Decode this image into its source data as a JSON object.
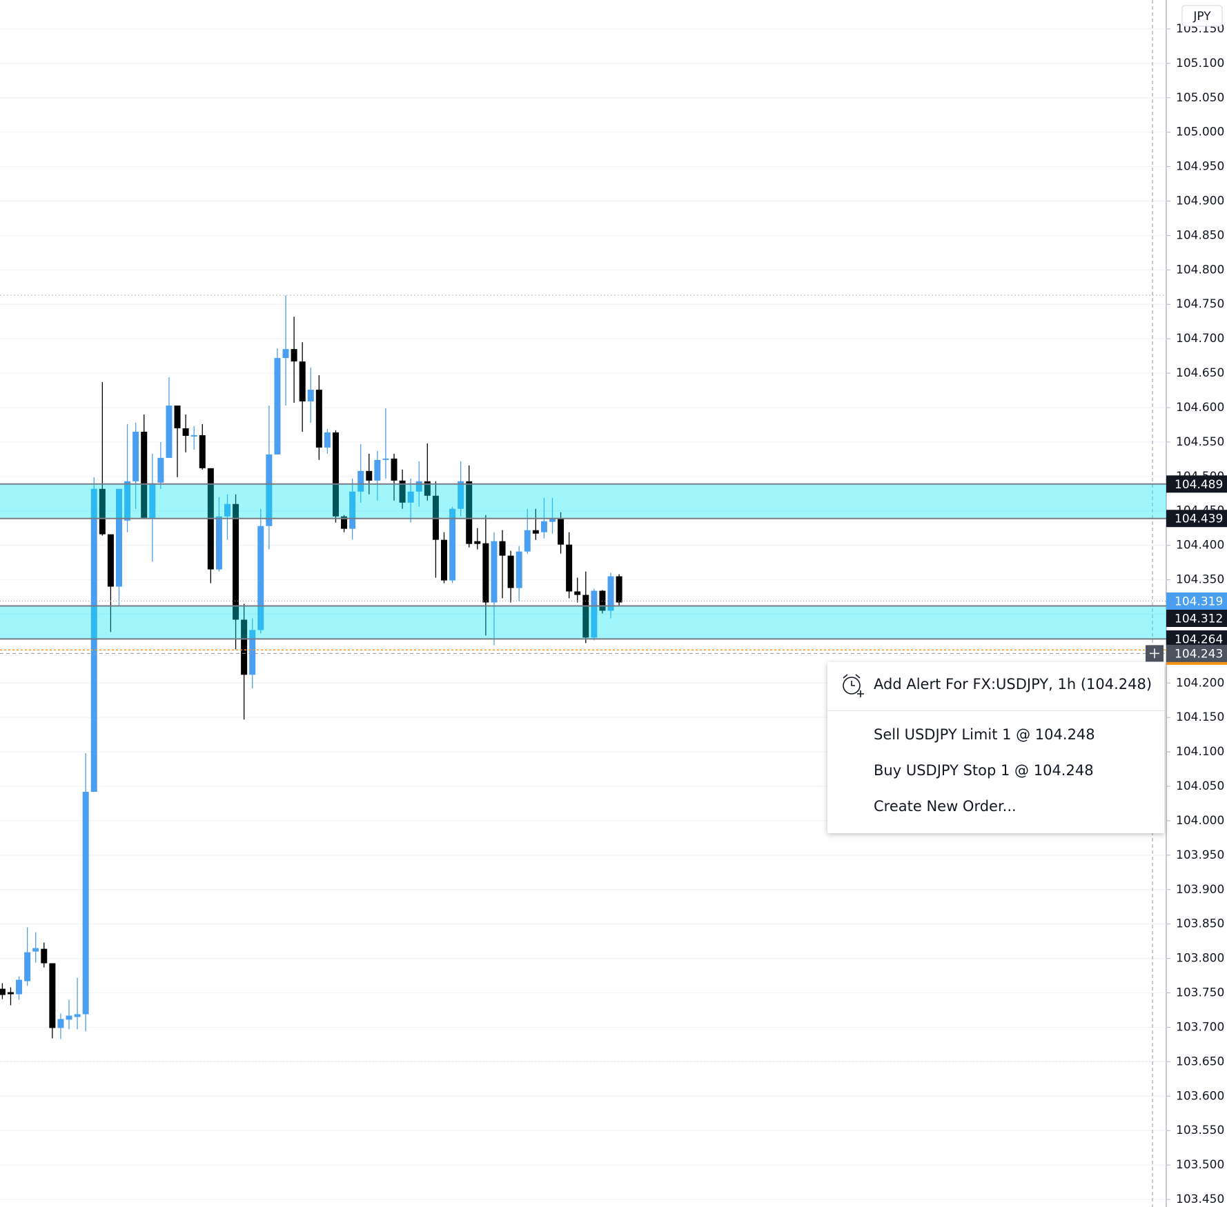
{
  "chart_data": {
    "type": "candlestick",
    "currency": "JPY",
    "open": [
      103.756,
      103.751,
      103.748,
      103.767,
      103.81,
      103.814,
      103.793,
      103.699,
      103.711,
      103.715,
      103.719,
      104.042,
      104.482,
      104.416,
      104.34,
      104.436,
      104.493,
      104.565,
      104.44,
      104.491,
      104.527,
      104.603,
      104.57,
      104.558,
      104.56,
      104.512,
      104.365,
      104.442,
      104.46,
      104.292,
      104.212,
      104.277,
      104.428,
      104.532,
      104.672,
      104.685,
      104.667,
      104.609,
      104.626,
      104.542,
      104.564,
      104.442,
      104.424,
      104.478,
      104.508,
      104.494,
      104.524,
      104.526,
      104.494,
      104.462,
      104.478,
      104.493,
      104.472,
      104.408,
      104.349,
      104.453,
      104.493,
      104.406,
      104.403,
      104.317,
      104.406,
      104.385,
      104.338,
      104.391,
      104.422,
      104.419,
      104.434,
      104.439,
      104.401,
      104.333,
      104.328,
      104.266,
      104.334,
      104.305,
      104.355
    ],
    "high": [
      103.764,
      103.758,
      103.774,
      103.845,
      103.838,
      103.823,
      103.793,
      103.72,
      103.74,
      103.772,
      104.098,
      104.499,
      104.637,
      104.416,
      104.482,
      104.576,
      104.578,
      104.59,
      104.533,
      104.55,
      104.644,
      104.603,
      104.59,
      104.573,
      104.576,
      104.512,
      104.47,
      104.474,
      104.474,
      104.315,
      104.294,
      104.453,
      104.603,
      104.686,
      104.763,
      104.732,
      104.695,
      104.658,
      104.647,
      104.569,
      104.567,
      104.444,
      104.497,
      104.547,
      104.533,
      104.537,
      104.599,
      104.533,
      104.51,
      104.497,
      104.522,
      104.548,
      104.493,
      104.419,
      104.456,
      104.522,
      104.516,
      104.425,
      104.444,
      104.419,
      104.422,
      104.392,
      104.399,
      104.453,
      104.453,
      104.469,
      104.469,
      104.448,
      104.419,
      104.353,
      104.362,
      104.337,
      104.335,
      104.36,
      104.358
    ],
    "low": [
      103.741,
      103.732,
      103.74,
      103.76,
      103.794,
      103.787,
      103.684,
      103.683,
      103.697,
      103.697,
      103.694,
      104.042,
      104.414,
      104.274,
      104.311,
      104.419,
      104.453,
      104.44,
      104.376,
      104.482,
      104.527,
      104.499,
      104.535,
      104.539,
      104.51,
      104.345,
      104.362,
      104.408,
      104.249,
      104.147,
      104.192,
      104.272,
      104.394,
      104.532,
      104.603,
      104.607,
      104.565,
      104.578,
      104.524,
      104.533,
      104.433,
      104.419,
      104.408,
      104.462,
      104.474,
      104.465,
      104.497,
      104.465,
      104.453,
      104.433,
      104.456,
      104.465,
      104.353,
      104.345,
      104.345,
      104.442,
      104.397,
      104.394,
      104.269,
      104.255,
      104.323,
      104.317,
      104.319,
      104.388,
      104.408,
      104.41,
      104.417,
      104.388,
      104.323,
      104.317,
      104.258,
      104.262,
      104.301,
      104.294,
      104.311
    ],
    "close": [
      103.747,
      103.748,
      103.769,
      103.809,
      103.815,
      103.793,
      103.699,
      103.712,
      103.717,
      103.719,
      104.042,
      104.482,
      104.416,
      104.34,
      104.482,
      104.493,
      104.565,
      104.44,
      104.49,
      104.527,
      104.603,
      104.57,
      104.559,
      104.56,
      104.512,
      104.365,
      104.442,
      104.46,
      104.292,
      104.212,
      104.277,
      104.428,
      104.532,
      104.672,
      104.685,
      104.667,
      104.609,
      104.626,
      104.542,
      104.564,
      104.442,
      104.424,
      104.478,
      104.508,
      104.494,
      104.524,
      104.526,
      104.494,
      104.462,
      104.478,
      104.493,
      104.472,
      104.408,
      104.349,
      104.453,
      104.493,
      104.402,
      104.402,
      104.317,
      104.406,
      104.385,
      104.338,
      104.391,
      104.422,
      104.417,
      104.435,
      104.439,
      104.401,
      104.333,
      104.328,
      104.266,
      104.334,
      104.305,
      104.355,
      104.317
    ],
    "up_color": "#4a9ff0",
    "down_color": "#000000",
    "ylim": [
      103.439,
      105.192
    ],
    "yticks": [
      {
        "value": 105.15,
        "label": "105.150"
      },
      {
        "value": 105.1,
        "label": "105.100"
      },
      {
        "value": 105.05,
        "label": "105.050"
      },
      {
        "value": 105.0,
        "label": "105.000"
      },
      {
        "value": 104.95,
        "label": "104.950"
      },
      {
        "value": 104.9,
        "label": "104.900"
      },
      {
        "value": 104.85,
        "label": "104.850"
      },
      {
        "value": 104.8,
        "label": "104.800"
      },
      {
        "value": 104.75,
        "label": "104.750"
      },
      {
        "value": 104.7,
        "label": "104.700"
      },
      {
        "value": 104.65,
        "label": "104.650"
      },
      {
        "value": 104.6,
        "label": "104.600"
      },
      {
        "value": 104.55,
        "label": "104.550"
      },
      {
        "value": 104.5,
        "label": "104.500"
      },
      {
        "value": 104.45,
        "label": "104.450"
      },
      {
        "value": 104.4,
        "label": "104.400"
      },
      {
        "value": 104.35,
        "label": "104.350"
      },
      {
        "value": 104.3,
        "label": "104.300"
      },
      {
        "value": 104.25,
        "label": "104.250"
      },
      {
        "value": 104.2,
        "label": "104.200"
      },
      {
        "value": 104.15,
        "label": "104.150"
      },
      {
        "value": 104.1,
        "label": "104.100"
      },
      {
        "value": 104.05,
        "label": "104.050"
      },
      {
        "value": 104.0,
        "label": "104.000"
      },
      {
        "value": 103.95,
        "label": "103.950"
      },
      {
        "value": 103.9,
        "label": "103.900"
      },
      {
        "value": 103.85,
        "label": "103.850"
      },
      {
        "value": 103.8,
        "label": "103.800"
      },
      {
        "value": 103.75,
        "label": "103.750"
      },
      {
        "value": 103.7,
        "label": "103.700"
      },
      {
        "value": 103.65,
        "label": "103.650"
      },
      {
        "value": 103.6,
        "label": "103.600"
      },
      {
        "value": 103.55,
        "label": "103.550"
      },
      {
        "value": 103.5,
        "label": "103.500"
      },
      {
        "value": 103.45,
        "label": "103.450"
      }
    ],
    "grid": true,
    "zones": [
      {
        "top": 104.489,
        "bottom": 104.439,
        "color": "#00e6f5"
      },
      {
        "top": 104.312,
        "bottom": 104.264,
        "color": "#00e6f5"
      }
    ],
    "last_price": 104.319,
    "last_price_color": "#4a9ff0",
    "order_price": 104.248,
    "order_color": "#f7931a",
    "crosshair_price": 104.243,
    "crosshair_color": "#4c525e"
  },
  "context_menu": {
    "items": [
      "Add Alert For FX:USDJPY, 1h (104.248)",
      "Sell USDJPY Limit 1 @ 104.248",
      "Buy USDJPY Stop 1 @ 104.248",
      "Create New Order..."
    ]
  }
}
